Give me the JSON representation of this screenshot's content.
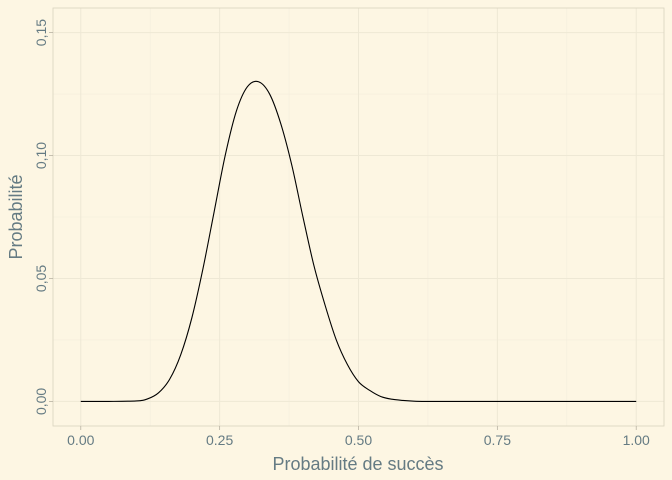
{
  "chart_data": {
    "type": "line",
    "title": "",
    "xlabel": "Probabilité de succès",
    "ylabel": "Probabilité",
    "xlim": [
      -0.05,
      1.05
    ],
    "ylim": [
      -0.01,
      0.16
    ],
    "x_ticks": [
      0.0,
      0.25,
      0.5,
      0.75,
      1.0
    ],
    "x_tick_labels": [
      "0.00",
      "0.25",
      "0.50",
      "0.75",
      "1.00"
    ],
    "y_ticks": [
      0.0,
      0.05,
      0.1,
      0.15
    ],
    "y_tick_labels": [
      "0,00",
      "0,05",
      "0,10",
      "0,15"
    ],
    "grid": true,
    "legend": "none",
    "colors": {
      "background": "#FDF6E3",
      "line": "#000000",
      "grid": "#EEE8D5",
      "text": "#657B83"
    },
    "series": [
      {
        "x": [
          0.0,
          0.05,
          0.1,
          0.12,
          0.14,
          0.16,
          0.18,
          0.2,
          0.22,
          0.24,
          0.26,
          0.28,
          0.3,
          0.32,
          0.34,
          0.36,
          0.38,
          0.4,
          0.42,
          0.44,
          0.46,
          0.48,
          0.5,
          0.52,
          0.54,
          0.56,
          0.58,
          0.6,
          0.62,
          0.65,
          0.7,
          0.8,
          0.9,
          1.0
        ],
        "y": [
          0.0,
          0.0,
          0.0002,
          0.001,
          0.0035,
          0.009,
          0.019,
          0.034,
          0.054,
          0.077,
          0.1,
          0.118,
          0.128,
          0.13,
          0.125,
          0.113,
          0.096,
          0.075,
          0.055,
          0.039,
          0.025,
          0.015,
          0.008,
          0.0045,
          0.002,
          0.0009,
          0.0004,
          0.0001,
          0.0,
          0.0,
          0.0,
          0.0,
          0.0,
          0.0
        ]
      }
    ]
  }
}
